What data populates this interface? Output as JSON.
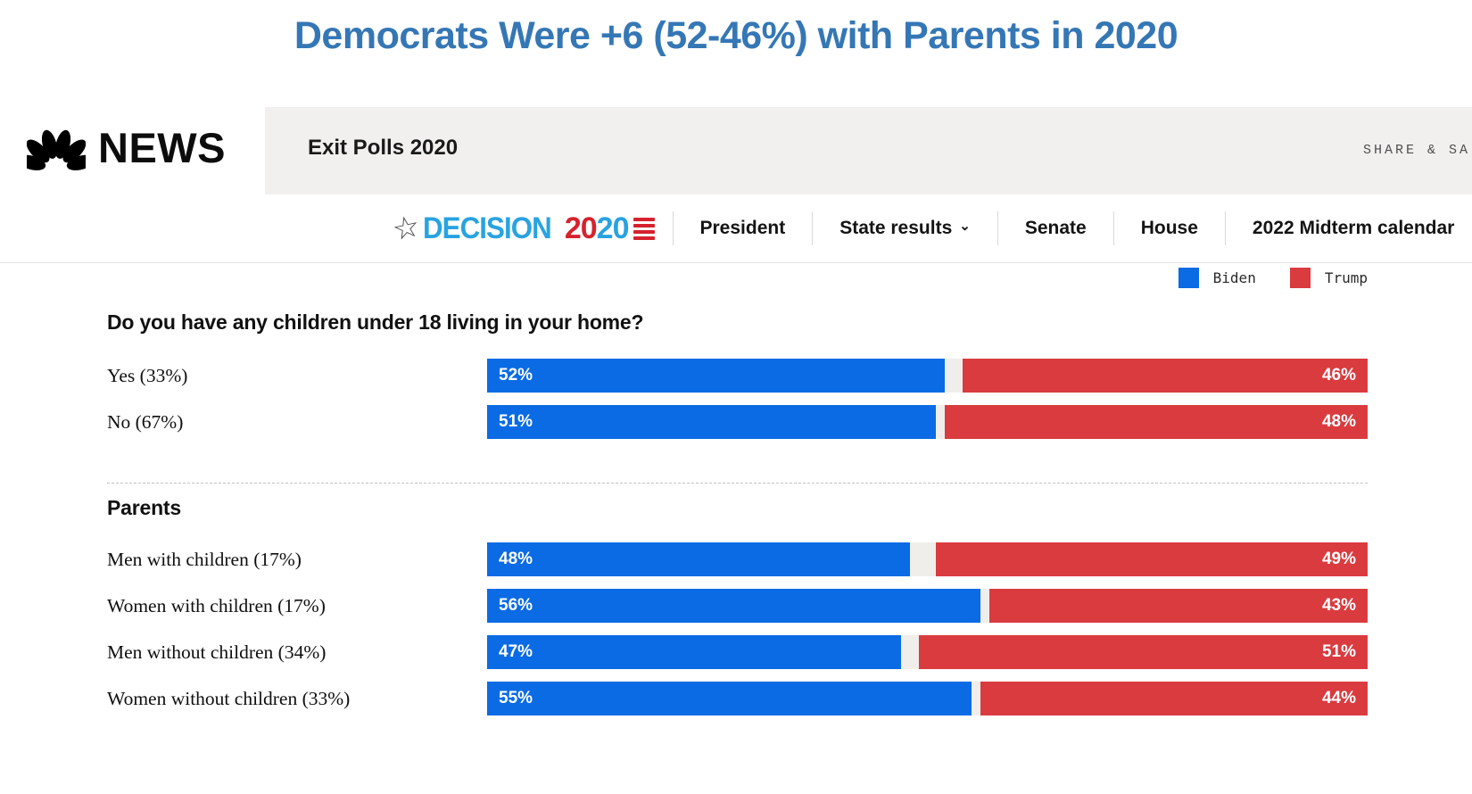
{
  "title": "Democrats Were +6 (52-46%) with Parents in 2020",
  "masthead": {
    "brand": "NEWS",
    "section_title": "Exit Polls 2020",
    "share_label": "SHARE & SA"
  },
  "navbar": {
    "logo": {
      "star_icon": "☆",
      "word": "DECISION",
      "year_first": "20",
      "year_second": "20",
      "flag_icon": "flag-stripes"
    },
    "dropdown_icon": "⌄",
    "items": [
      {
        "label": "President",
        "has_dropdown": false
      },
      {
        "label": "State results",
        "has_dropdown": true
      },
      {
        "label": "Senate",
        "has_dropdown": false
      },
      {
        "label": "House",
        "has_dropdown": false
      },
      {
        "label": "2022 Midterm calendar",
        "has_dropdown": false
      }
    ]
  },
  "legend": {
    "items": [
      {
        "label": "Biden",
        "color": "#0a6be4"
      },
      {
        "label": "Trump",
        "color": "#d93b3f"
      }
    ]
  },
  "colors": {
    "title": "#3577b5",
    "biden": "#0a6be4",
    "trump": "#d93b3f",
    "decision_blue": "#29a3e1",
    "decision_red": "#d5232e",
    "track": "#efeeeb"
  },
  "chart_data": {
    "type": "bar",
    "orientation": "horizontal",
    "unit": "%",
    "xlim": [
      0,
      100
    ],
    "series_names": [
      "Biden",
      "Trump"
    ],
    "legend_position": "top-right",
    "groups": [
      {
        "heading": "Do you have any children under 18 living in your home?",
        "rows": [
          {
            "label": "Yes (33%)",
            "biden": 52,
            "trump": 46
          },
          {
            "label": "No (67%)",
            "biden": 51,
            "trump": 48
          }
        ]
      },
      {
        "heading": "Parents",
        "rows": [
          {
            "label": "Men with children (17%)",
            "biden": 48,
            "trump": 49
          },
          {
            "label": "Women with children (17%)",
            "biden": 56,
            "trump": 43
          },
          {
            "label": "Men without children (34%)",
            "biden": 47,
            "trump": 51
          },
          {
            "label": "Women without children (33%)",
            "biden": 55,
            "trump": 44
          }
        ]
      }
    ]
  }
}
